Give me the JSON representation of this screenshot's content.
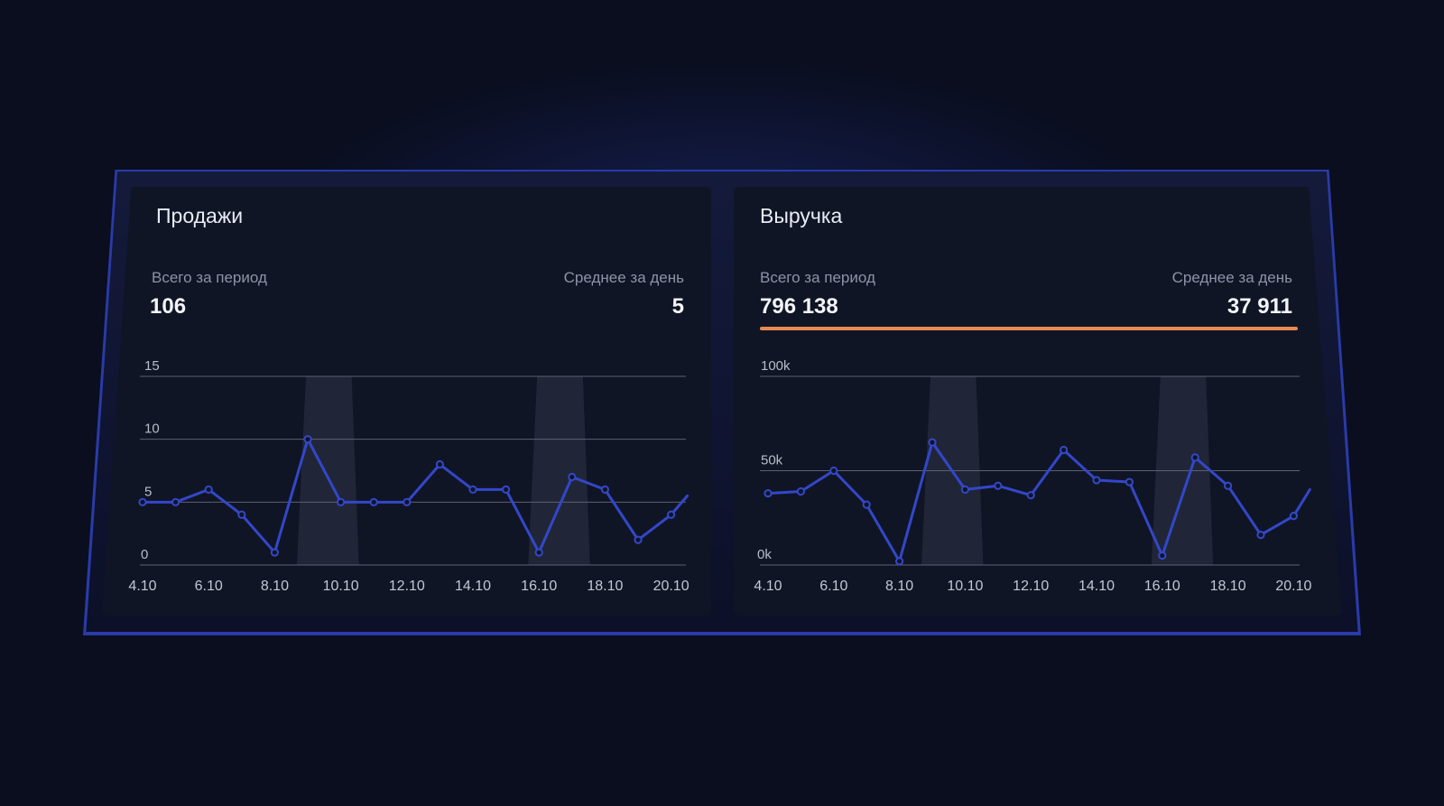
{
  "colors": {
    "background": "#0a0e1f",
    "panel": "#101525",
    "line": "#3347c9",
    "accent": "#e88a4f",
    "grid": "#5b6072",
    "weekend_band": "#2a2f40"
  },
  "sales": {
    "title": "Продажи",
    "total_label": "Всего за период",
    "total_value": "106",
    "avg_label": "Среднее за день",
    "avg_value": "5"
  },
  "revenue": {
    "title": "Выручка",
    "total_label": "Всего за период",
    "total_value": "796 138",
    "avg_label": "Среднее за день",
    "avg_value": "37 911"
  },
  "chart_data": [
    {
      "type": "line",
      "title": "Продажи",
      "x": [
        "4.10",
        "5.10",
        "6.10",
        "7.10",
        "8.10",
        "9.10",
        "10.10",
        "11.10",
        "12.10",
        "13.10",
        "14.10",
        "15.10",
        "16.10",
        "17.10",
        "18.10",
        "19.10",
        "20.10"
      ],
      "x_tick_labels": [
        "4.10",
        "6.10",
        "8.10",
        "10.10",
        "12.10",
        "14.10",
        "16.10",
        "18.10",
        "20.10"
      ],
      "series": [
        {
          "values": [
            5,
            5,
            6,
            4,
            1,
            10,
            5,
            5,
            5,
            8,
            6,
            6,
            1,
            7,
            6,
            2,
            4
          ]
        }
      ],
      "y_ticks": [
        0,
        5,
        10,
        15
      ],
      "y_tick_labels": [
        "0",
        "5",
        "10",
        "15"
      ],
      "ylim": [
        0,
        15
      ],
      "last_value": 5.5,
      "weekend_bands": [
        [
          "9.10",
          "10.10"
        ],
        [
          "16.10",
          "17.10"
        ]
      ],
      "grid": true
    },
    {
      "type": "line",
      "title": "Выручка",
      "x": [
        "4.10",
        "5.10",
        "6.10",
        "7.10",
        "8.10",
        "9.10",
        "10.10",
        "11.10",
        "12.10",
        "13.10",
        "14.10",
        "15.10",
        "16.10",
        "17.10",
        "18.10",
        "19.10",
        "20.10"
      ],
      "x_tick_labels": [
        "4.10",
        "6.10",
        "8.10",
        "10.10",
        "12.10",
        "14.10",
        "16.10",
        "18.10",
        "20.10"
      ],
      "series": [
        {
          "values": [
            38000,
            39000,
            50000,
            32000,
            2000,
            65000,
            40000,
            42000,
            37000,
            61000,
            45000,
            44000,
            5000,
            57000,
            42000,
            16000,
            26000
          ]
        }
      ],
      "y_ticks": [
        0,
        50000,
        100000
      ],
      "y_tick_labels": [
        "0k",
        "50k",
        "100k"
      ],
      "ylim": [
        0,
        100000
      ],
      "last_value": 40000,
      "weekend_bands": [
        [
          "9.10",
          "10.10"
        ],
        [
          "16.10",
          "17.10"
        ]
      ],
      "grid": true
    }
  ]
}
